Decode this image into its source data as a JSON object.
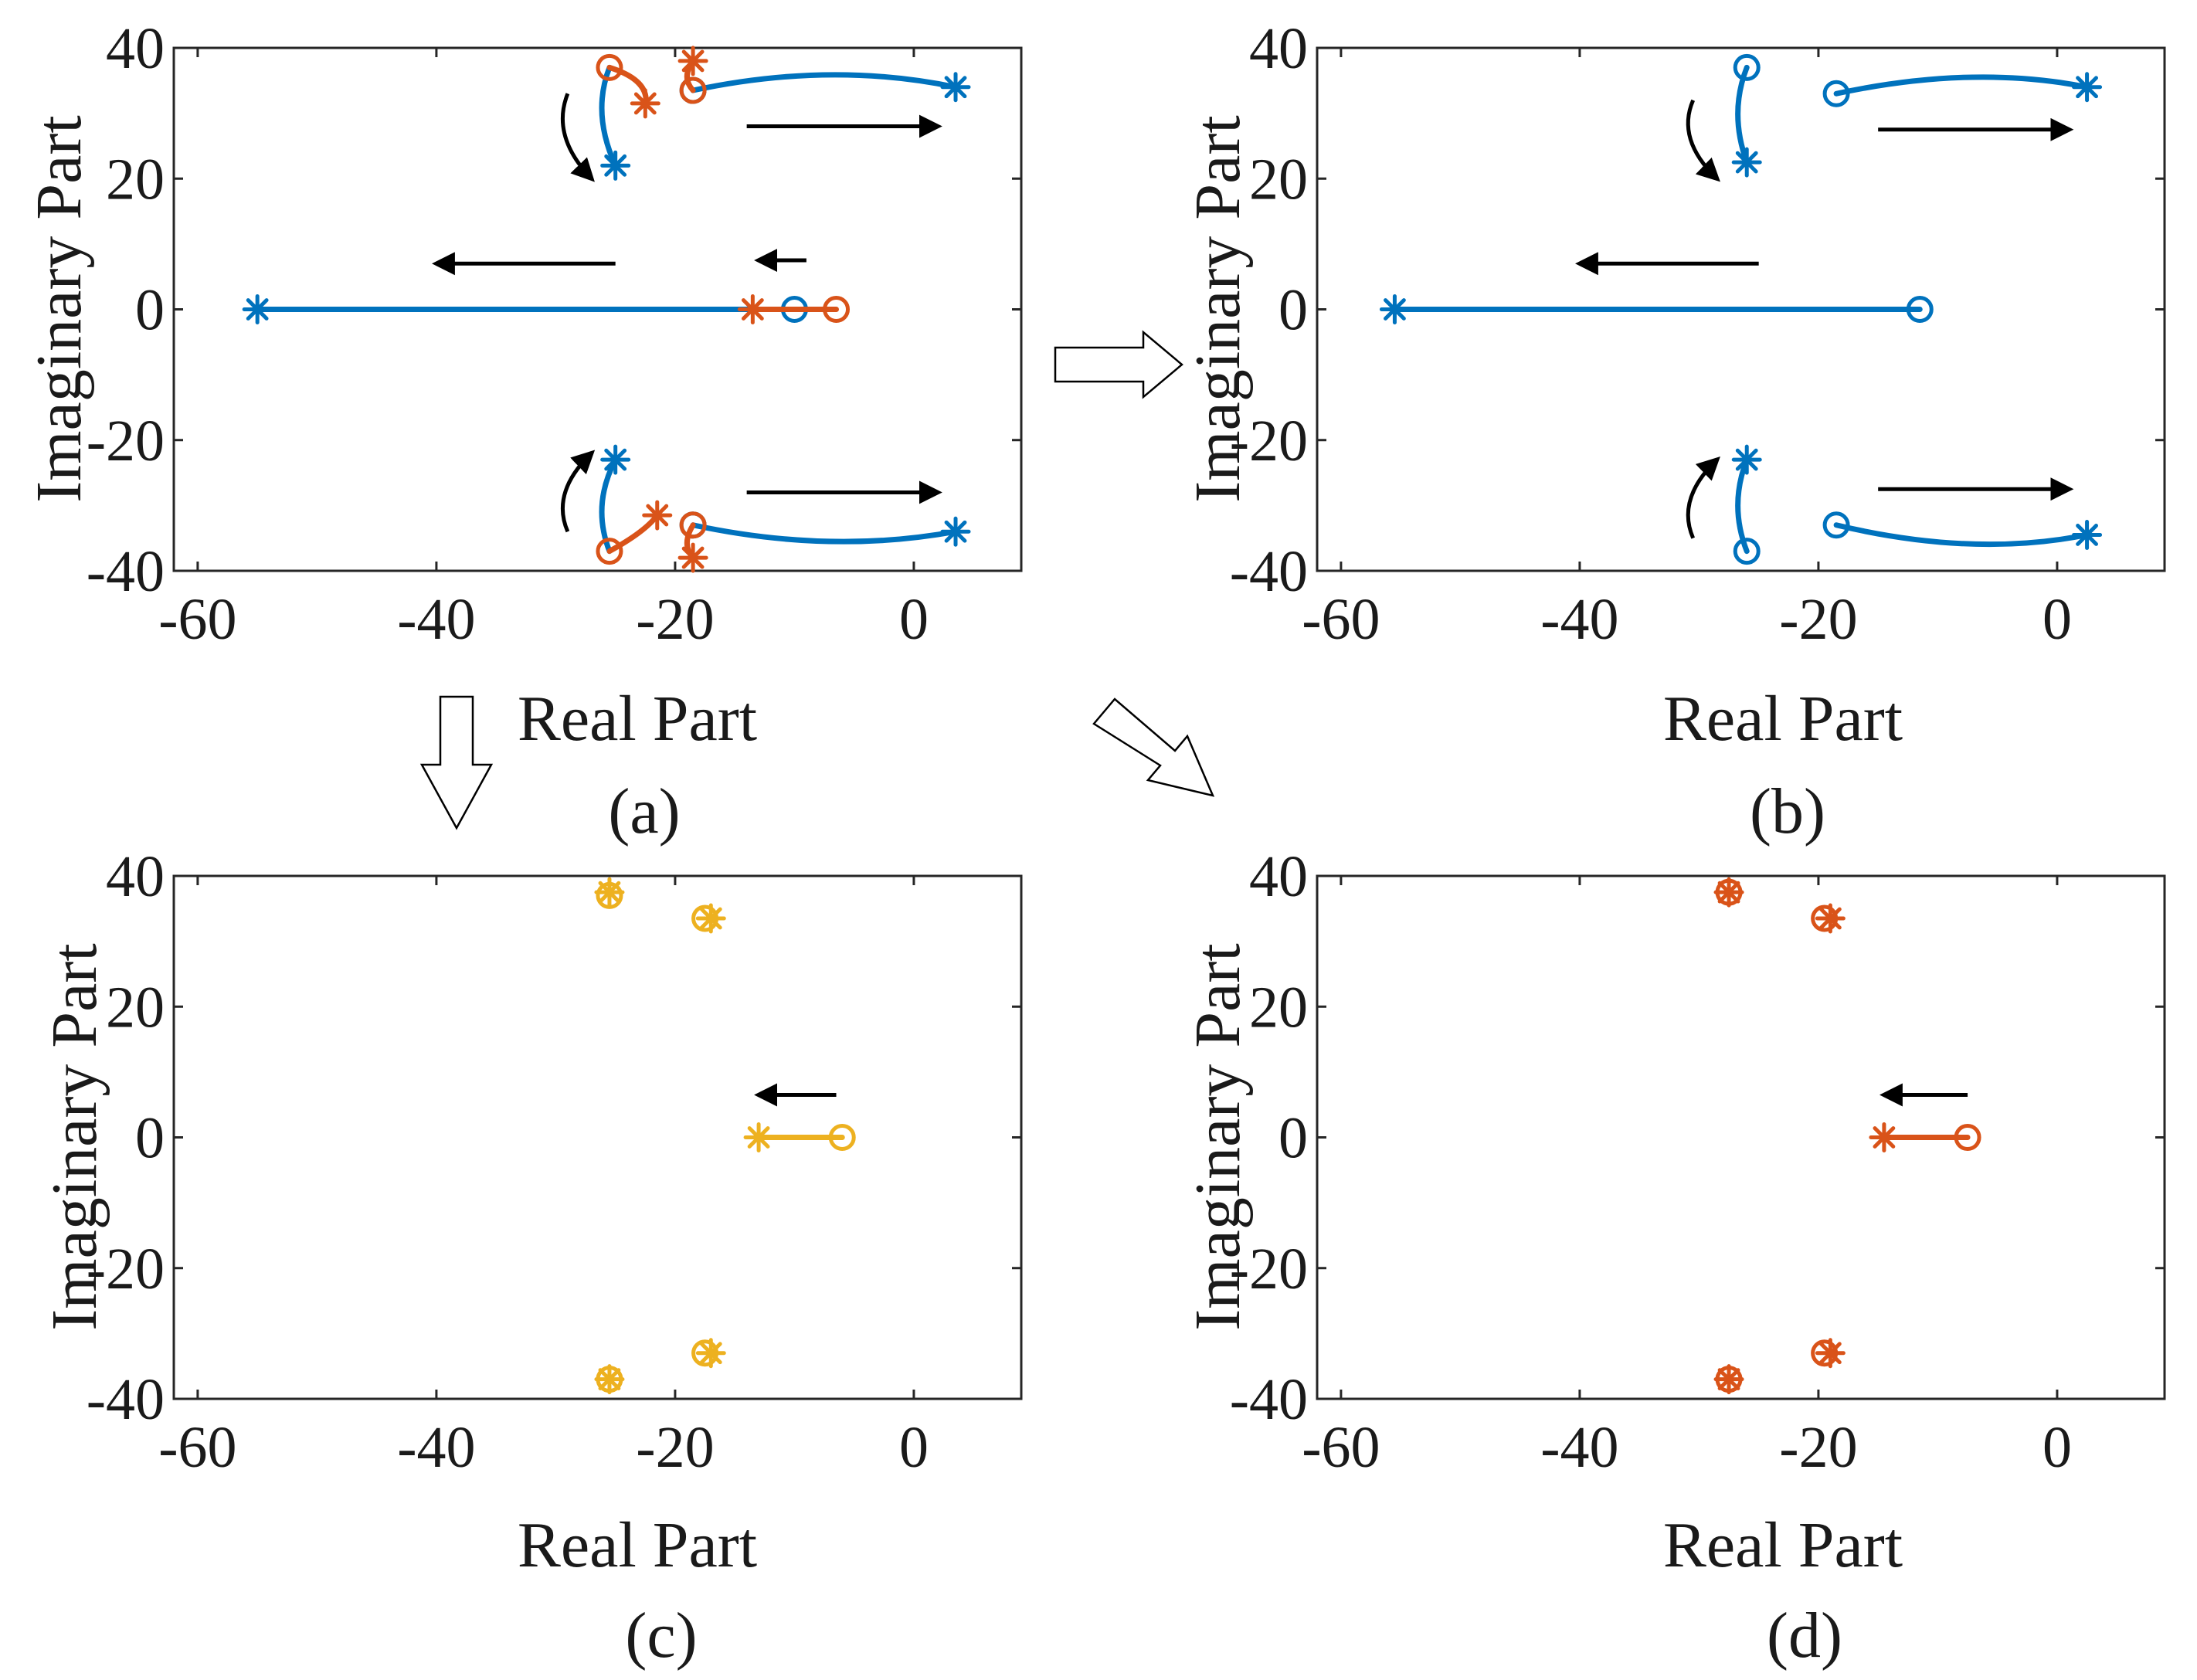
{
  "colors": {
    "blue": "#0072BD",
    "orange": "#D95319",
    "yellow": "#EDB120",
    "black": "#000000"
  },
  "chart_data": [
    {
      "id": "a",
      "type": "scatter",
      "caption": "(a)",
      "xlabel": "Real Part",
      "ylabel": "Imaginary Part",
      "xlim": [
        -62,
        9
      ],
      "ylim": [
        -40,
        40
      ],
      "xticks": [
        -60,
        -40,
        -20,
        0
      ],
      "xtick_labels": [
        "-60",
        "-40",
        "-20",
        "0"
      ],
      "yticks": [
        40,
        20,
        0,
        -20,
        -40
      ],
      "ytick_labels": [
        "40",
        "20",
        "0",
        "-20",
        "-40"
      ],
      "series": [
        {
          "name": "loci-blue",
          "color": "blue",
          "paths": [
            [
              [
                -55,
                0
              ],
              [
                -13,
                0
              ],
              [
                -10,
                0
              ]
            ],
            [
              [
                -25.5,
                37
              ],
              [
                -27,
                30
              ],
              [
                -25,
                22
              ]
            ],
            [
              [
                -25.5,
                -37
              ],
              [
                -27,
                -30
              ],
              [
                -25,
                -23
              ]
            ],
            [
              [
                -18.5,
                33.5
              ],
              [
                -7,
                38
              ],
              [
                3.5,
                34
              ]
            ],
            [
              [
                -18.5,
                -33
              ],
              [
                -7,
                -37.5
              ],
              [
                3.5,
                -34
              ]
            ]
          ],
          "zeros": [
            [
              -10,
              0
            ],
            [
              -18.5,
              33.5
            ],
            [
              -18.5,
              -33
            ]
          ],
          "poles": [
            [
              -55,
              0
            ],
            [
              -25,
              22
            ],
            [
              -25,
              -23
            ],
            [
              3.5,
              34
            ],
            [
              3.5,
              -34
            ]
          ]
        },
        {
          "name": "loci-orange",
          "color": "orange",
          "paths": [
            [
              [
                -6.5,
                0
              ],
              [
                -13.5,
                0
              ]
            ],
            [
              [
                -25.5,
                37
              ],
              [
                -22,
                35
              ],
              [
                -22.5,
                31
              ]
            ],
            [
              [
                -25.5,
                -37
              ],
              [
                -22.5,
                -34
              ],
              [
                -21.5,
                -31.5
              ]
            ],
            [
              [
                -18.5,
                33.5
              ],
              [
                -19.5,
                35.5
              ],
              [
                -18.5,
                38
              ]
            ],
            [
              [
                -18.5,
                -33
              ],
              [
                -19.5,
                -36
              ],
              [
                -18.5,
                -38
              ]
            ]
          ],
          "zeros": [
            [
              -6.5,
              0
            ],
            [
              -25.5,
              37
            ],
            [
              -25.5,
              -37
            ],
            [
              -18.5,
              33.5
            ],
            [
              -18.5,
              -33
            ]
          ],
          "poles": [
            [
              -13.5,
              0
            ],
            [
              -22.5,
              31.5
            ],
            [
              -21.5,
              -31.5
            ],
            [
              -18.5,
              38
            ],
            [
              -18.5,
              -38
            ]
          ]
        }
      ],
      "arrows": [
        {
          "from": [
            -25,
            7
          ],
          "to": [
            -40,
            7
          ]
        },
        {
          "from": [
            -9,
            7.5
          ],
          "to": [
            -13,
            7.5
          ]
        },
        {
          "from": [
            -29,
            33
          ],
          "to": [
            -27,
            20
          ]
        },
        {
          "from": [
            -29,
            -34
          ],
          "to": [
            -27,
            -22
          ]
        },
        {
          "from": [
            -14,
            28
          ],
          "to": [
            2,
            28
          ]
        },
        {
          "from": [
            -14,
            -28
          ],
          "to": [
            2,
            -28
          ]
        }
      ]
    },
    {
      "id": "b",
      "type": "scatter",
      "caption": "(b)",
      "xlabel": "Real Part",
      "ylabel": "Imaginary Part",
      "xlim": [
        -62,
        9
      ],
      "ylim": [
        -40,
        40
      ],
      "xticks": [
        -60,
        -40,
        -20,
        0
      ],
      "xtick_labels": [
        "-60",
        "-40",
        "-20",
        "0"
      ],
      "yticks": [
        40,
        20,
        0,
        -20,
        -40
      ],
      "ytick_labels": [
        "40",
        "20",
        "0",
        "-20",
        "-40"
      ],
      "series": [
        {
          "name": "loci-blue",
          "color": "blue",
          "paths": [
            [
              [
                -55.5,
                0
              ],
              [
                -11.5,
                0
              ]
            ],
            [
              [
                -26,
                37
              ],
              [
                -27.5,
                30
              ],
              [
                -26,
                22.5
              ]
            ],
            [
              [
                -26,
                -37
              ],
              [
                -27.5,
                -30
              ],
              [
                -26,
                -23
              ]
            ],
            [
              [
                -18.5,
                33
              ],
              [
                -7,
                37.5
              ],
              [
                2.5,
                34
              ]
            ],
            [
              [
                -18.5,
                -33
              ],
              [
                -7,
                -38
              ],
              [
                2.5,
                -34.5
              ]
            ]
          ],
          "zeros": [
            [
              -11.5,
              0
            ],
            [
              -26,
              37
            ],
            [
              -26,
              -37
            ],
            [
              -18.5,
              33
            ],
            [
              -18.5,
              -33
            ]
          ],
          "poles": [
            [
              -55.5,
              0
            ],
            [
              -26,
              22.5
            ],
            [
              -26,
              -23
            ],
            [
              2.5,
              34
            ],
            [
              2.5,
              -34.5
            ]
          ]
        }
      ],
      "arrows": [
        {
          "from": [
            -25,
            7
          ],
          "to": [
            -40,
            7
          ]
        },
        {
          "from": [
            -30.5,
            32
          ],
          "to": [
            -28.5,
            20
          ]
        },
        {
          "from": [
            -30.5,
            -35
          ],
          "to": [
            -28.5,
            -23
          ]
        },
        {
          "from": [
            -15,
            27.5
          ],
          "to": [
            1,
            27.5
          ]
        },
        {
          "from": [
            -15,
            -27.5
          ],
          "to": [
            1,
            -27.5
          ]
        }
      ]
    },
    {
      "id": "c",
      "type": "scatter",
      "caption": "(c)",
      "xlabel": "Real Part",
      "ylabel": "Imaginary Part",
      "xlim": [
        -62,
        9
      ],
      "ylim": [
        -40,
        40
      ],
      "xticks": [
        -60,
        -40,
        -20,
        0
      ],
      "xtick_labels": [
        "-60",
        "-40",
        "-20",
        "0"
      ],
      "yticks": [
        40,
        20,
        0,
        -20,
        -40
      ],
      "ytick_labels": [
        "40",
        "20",
        "0",
        "-20",
        "-40"
      ],
      "series": [
        {
          "name": "loci-yellow",
          "color": "yellow",
          "paths": [
            [
              [
                -6,
                0
              ],
              [
                -13,
                0
              ]
            ]
          ],
          "zeros": [
            [
              -6,
              0
            ],
            [
              -25.5,
              37
            ],
            [
              -25.5,
              -37
            ],
            [
              -17.5,
              33.5
            ],
            [
              -17.5,
              -33
            ]
          ],
          "poles": [
            [
              -13,
              0
            ],
            [
              -25.5,
              37.5
            ],
            [
              -25.5,
              -37
            ],
            [
              -17,
              33.5
            ],
            [
              -17,
              -33
            ]
          ]
        }
      ],
      "arrows": [
        {
          "from": [
            -6.5,
            6.5
          ],
          "to": [
            -13,
            6.5
          ]
        }
      ]
    },
    {
      "id": "d",
      "type": "scatter",
      "caption": "(d)",
      "xlabel": "Real Part",
      "ylabel": "Imaginary Part",
      "xlim": [
        -62,
        9
      ],
      "ylim": [
        -40,
        40
      ],
      "xticks": [
        -60,
        -40,
        -20,
        0
      ],
      "xtick_labels": [
        "-60",
        "-40",
        "-20",
        "0"
      ],
      "yticks": [
        40,
        20,
        0,
        -20,
        -40
      ],
      "ytick_labels": [
        "40",
        "20",
        "0",
        "-20",
        "-40"
      ],
      "series": [
        {
          "name": "loci-orange",
          "color": "orange",
          "paths": [
            [
              [
                -7.5,
                0
              ],
              [
                -14.5,
                0
              ]
            ]
          ],
          "zeros": [
            [
              -7.5,
              0
            ],
            [
              -27.5,
              37.5
            ],
            [
              -27.5,
              -37
            ],
            [
              -19.5,
              33.5
            ],
            [
              -19.5,
              -33
            ]
          ],
          "poles": [
            [
              -14.5,
              0
            ],
            [
              -27.5,
              37.5
            ],
            [
              -27.5,
              -37
            ],
            [
              -19,
              33.5
            ],
            [
              -19,
              -33
            ]
          ]
        }
      ],
      "arrows": [
        {
          "from": [
            -7.5,
            6.5
          ],
          "to": [
            -14.5,
            6.5
          ]
        }
      ]
    }
  ],
  "transition_arrows": [
    {
      "name": "arrow-a-to-b",
      "direction": "right"
    },
    {
      "name": "arrow-a-to-c",
      "direction": "down"
    },
    {
      "name": "arrow-a-to-d",
      "direction": "down-right"
    }
  ]
}
